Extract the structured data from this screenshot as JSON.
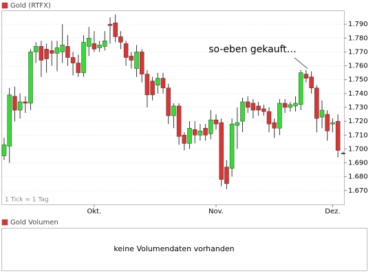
{
  "chart_data": {
    "type": "candlestick",
    "title": "Gold (RTFX)",
    "legend_color": "#dd3333",
    "up_color": "#33dd33",
    "down_color": "#dd3333",
    "note": "1 Tick = 1 Tag",
    "annotation": {
      "text": "so-eben gekauft…",
      "index": 57
    },
    "categories": [
      null,
      null,
      null,
      null,
      null,
      null,
      null,
      null,
      null,
      null,
      null,
      null,
      null,
      null,
      null,
      null,
      null,
      "Okt.",
      null,
      null,
      null,
      null,
      null,
      null,
      null,
      null,
      null,
      null,
      null,
      null,
      null,
      null,
      null,
      null,
      null,
      null,
      null,
      null,
      null,
      null,
      "Nov.",
      null,
      null,
      null,
      null,
      null,
      null,
      null,
      null,
      null,
      null,
      null,
      null,
      null,
      null,
      null,
      null,
      null,
      null,
      null,
      null,
      null,
      "Dez.",
      null,
      null
    ],
    "open": [
      1.695,
      1.702,
      1.738,
      1.728,
      1.734,
      1.733,
      1.77,
      1.774,
      1.772,
      1.771,
      1.769,
      1.77,
      1.774,
      1.766,
      1.762,
      1.755,
      1.774,
      1.776,
      1.773,
      1.774,
      1.79,
      1.791,
      1.781,
      1.776,
      1.767,
      1.758,
      1.77,
      1.754,
      1.749,
      1.746,
      1.751,
      1.744,
      1.724,
      1.731,
      1.71,
      1.704,
      1.714,
      1.71,
      1.715,
      1.711,
      1.721,
      1.719,
      1.687,
      1.686,
      1.717,
      1.72,
      1.734,
      1.733,
      1.731,
      1.729,
      1.727,
      1.719,
      1.715,
      1.733,
      1.73,
      1.731,
      1.732,
      1.754,
      1.752,
      1.744,
      1.723,
      1.725,
      1.718,
      1.72,
      1.697
    ],
    "high": [
      1.708,
      1.744,
      1.745,
      1.74,
      1.738,
      1.772,
      1.777,
      1.778,
      1.776,
      1.778,
      1.778,
      1.79,
      1.782,
      1.77,
      1.768,
      1.782,
      1.788,
      1.785,
      1.778,
      1.785,
      1.795,
      1.797,
      1.785,
      1.778,
      1.77,
      1.775,
      1.772,
      1.757,
      1.752,
      1.755,
      1.755,
      1.747,
      1.733,
      1.733,
      1.712,
      1.72,
      1.72,
      1.718,
      1.718,
      1.728,
      1.725,
      1.722,
      1.692,
      1.722,
      1.73,
      1.737,
      1.738,
      1.736,
      1.734,
      1.732,
      1.73,
      1.722,
      1.736,
      1.736,
      1.734,
      1.738,
      1.757,
      1.757,
      1.756,
      1.746,
      1.735,
      1.728,
      1.722,
      1.725,
      1.698
    ],
    "low": [
      1.692,
      1.69,
      1.72,
      1.722,
      1.726,
      1.728,
      1.762,
      1.752,
      1.755,
      1.76,
      1.756,
      1.762,
      1.76,
      1.753,
      1.752,
      1.752,
      1.767,
      1.77,
      1.77,
      1.771,
      1.776,
      1.777,
      1.772,
      1.76,
      1.758,
      1.752,
      1.748,
      1.73,
      1.735,
      1.74,
      1.74,
      1.718,
      1.715,
      1.703,
      1.699,
      1.7,
      1.704,
      1.706,
      1.706,
      1.707,
      1.714,
      1.673,
      1.671,
      1.68,
      1.7,
      1.712,
      1.726,
      1.722,
      1.724,
      1.724,
      1.712,
      1.708,
      1.71,
      1.726,
      1.727,
      1.727,
      1.728,
      1.748,
      1.74,
      1.712,
      1.715,
      1.706,
      1.712,
      1.694,
      1.696
    ],
    "close": [
      1.703,
      1.739,
      1.728,
      1.734,
      1.733,
      1.77,
      1.774,
      1.764,
      1.765,
      1.769,
      1.773,
      1.775,
      1.766,
      1.762,
      1.755,
      1.777,
      1.78,
      1.772,
      1.775,
      1.778,
      1.789,
      1.781,
      1.777,
      1.766,
      1.764,
      1.77,
      1.754,
      1.739,
      1.739,
      1.751,
      1.744,
      1.724,
      1.731,
      1.709,
      1.704,
      1.715,
      1.71,
      1.713,
      1.71,
      1.721,
      1.718,
      1.678,
      1.675,
      1.718,
      1.719,
      1.734,
      1.73,
      1.728,
      1.728,
      1.727,
      1.718,
      1.715,
      1.733,
      1.73,
      1.732,
      1.733,
      1.755,
      1.751,
      1.744,
      1.722,
      1.728,
      1.713,
      1.719,
      1.699,
      1.697
    ],
    "ylim": [
      1.66,
      1.8
    ],
    "yticks": [
      {
        "value": 1.67,
        "label": "1.670"
      },
      {
        "value": 1.68,
        "label": "1.680"
      },
      {
        "value": 1.69,
        "label": "1.690"
      },
      {
        "value": 1.7,
        "label": "1.700"
      },
      {
        "value": 1.71,
        "label": "1.710"
      },
      {
        "value": 1.72,
        "label": "1.720"
      },
      {
        "value": 1.73,
        "label": "1.730"
      },
      {
        "value": 1.74,
        "label": "1.740"
      },
      {
        "value": 1.75,
        "label": "1.750"
      },
      {
        "value": 1.76,
        "label": "1.760"
      },
      {
        "value": 1.77,
        "label": "1.770"
      },
      {
        "value": 1.78,
        "label": "1.780"
      },
      {
        "value": 1.79,
        "label": "1.790"
      }
    ],
    "grid": true
  },
  "volume_panel": {
    "title": "Gold Volumen",
    "legend_color": "#dd3333",
    "message": "keine Volumendaten vorhanden"
  }
}
